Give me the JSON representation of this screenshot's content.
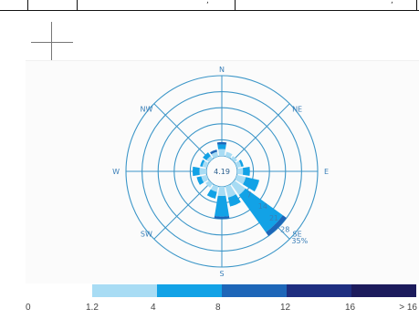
{
  "top_table": {
    "cells": [
      ",",
      ","
    ]
  },
  "chart_data": {
    "type": "windrose",
    "center_label": "4.19",
    "ring_labels": [
      "7",
      "14",
      "21",
      "28",
      "35%"
    ],
    "rmax": 35,
    "direction_labels": [
      "N",
      "NE",
      "E",
      "SE",
      "S",
      "SW",
      "W",
      "NW"
    ],
    "directions": [
      "N",
      "NNE",
      "NE",
      "ENE",
      "E",
      "ESE",
      "SE",
      "SSE",
      "S",
      "SSW",
      "SW",
      "WSW",
      "W",
      "WNW",
      "NW",
      "NNW"
    ],
    "speed_bins": [
      "0-1.2",
      "1.2-4",
      "4-8",
      "8-12",
      "12-16",
      ">16"
    ],
    "series": [
      {
        "values": [
          0,
          0,
          0,
          0,
          0,
          0,
          0,
          0,
          0,
          0,
          0,
          0,
          0,
          0,
          0,
          0
        ]
      },
      {
        "values": [
          3,
          2,
          1.5,
          2,
          2.5,
          4,
          6,
          5,
          4,
          2.5,
          2,
          2.5,
          3,
          2,
          1.5,
          2
        ]
      },
      {
        "values": [
          2,
          0,
          0,
          1,
          3,
          6,
          20,
          4,
          9,
          3,
          0,
          2,
          3,
          1,
          2,
          0
        ]
      },
      {
        "values": [
          1,
          0,
          0,
          0,
          0,
          0,
          2,
          0,
          1,
          0,
          0,
          0,
          0,
          0,
          0,
          1
        ]
      },
      {
        "values": [
          0,
          0,
          0,
          0,
          0,
          0,
          0,
          0,
          0,
          0,
          0,
          0,
          0,
          0,
          0,
          0
        ]
      },
      {
        "values": [
          0,
          0,
          0,
          0,
          0,
          0,
          0,
          0,
          0,
          0,
          0,
          0,
          0,
          0,
          0,
          0
        ]
      }
    ],
    "colors": [
      "#ffffff",
      "#a8dcf4",
      "#12a2e6",
      "#1d66b8",
      "#1e2e80",
      "#1c1b5c"
    ],
    "ring_color": "#3c96c8",
    "legend": {
      "tick_labels": [
        "0",
        "1.2",
        "4",
        "8",
        "12",
        "16",
        "> 16"
      ],
      "placement": "bottom"
    }
  }
}
